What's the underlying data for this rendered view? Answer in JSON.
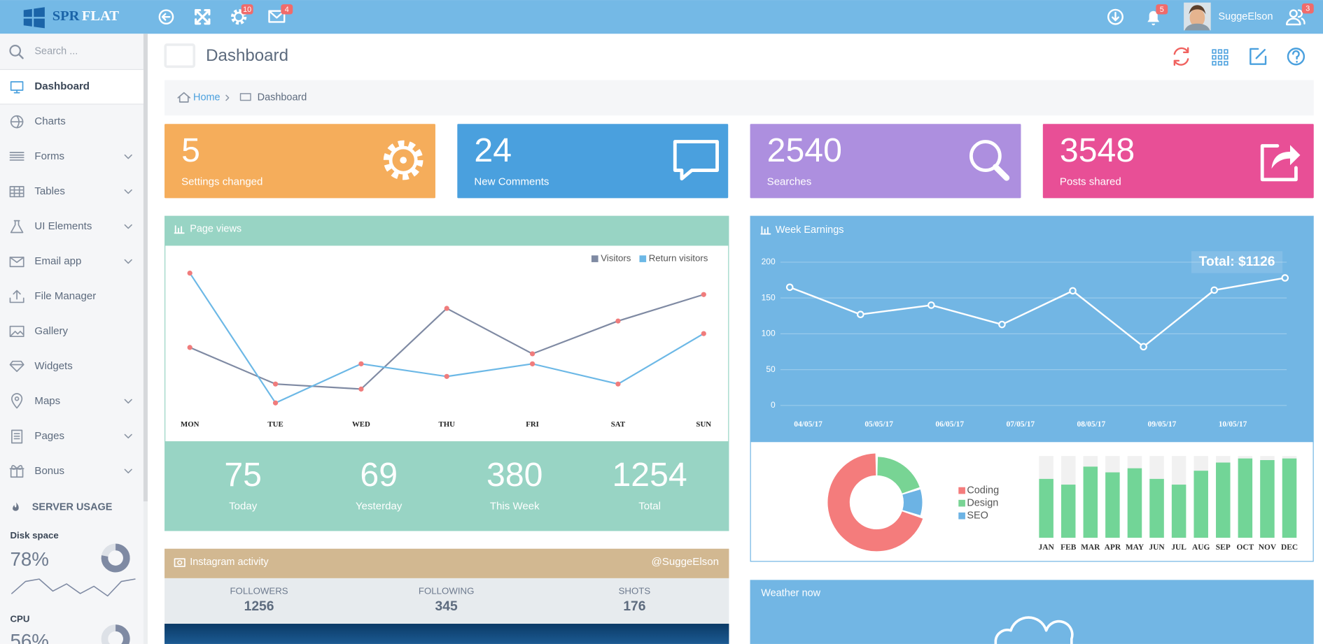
{
  "header": {
    "brand": [
      "SPR",
      "FLAT"
    ],
    "settings_badge": 10,
    "mail_badge": 4,
    "bell_badge": 5,
    "user": "SuggeElson",
    "users_badge": 3
  },
  "sidebar": {
    "search_placeholder": "Search ...",
    "menu": [
      {
        "label": "Dashboard",
        "has_submenu": false
      },
      {
        "label": "Charts",
        "has_submenu": false
      },
      {
        "label": "Forms",
        "has_submenu": true
      },
      {
        "label": "Tables",
        "has_submenu": true
      },
      {
        "label": "UI Elements",
        "has_submenu": true
      },
      {
        "label": "Email app",
        "has_submenu": true
      },
      {
        "label": "File Manager",
        "has_submenu": false
      },
      {
        "label": "Gallery",
        "has_submenu": false
      },
      {
        "label": "Widgets",
        "has_submenu": false
      },
      {
        "label": "Maps",
        "has_submenu": true
      },
      {
        "label": "Pages",
        "has_submenu": true
      },
      {
        "label": "Bonus",
        "has_submenu": true
      }
    ],
    "server_usage": "SERVER USAGE",
    "disk": {
      "label": "Disk space",
      "value": 78,
      "value_label": "78%",
      "trend": {
        "type": "line",
        "values": [
          3,
          8,
          9,
          4,
          7,
          3,
          6,
          2,
          8,
          9
        ],
        "color": "#7f8aa3"
      }
    },
    "cpu": {
      "label": "CPU",
      "value": 56,
      "value_label": "56%"
    }
  },
  "page": {
    "title": "Dashboard",
    "breadcrumb": [
      "Home",
      "Dashboard"
    ]
  },
  "stats": [
    {
      "value": 5,
      "label": "Settings changed",
      "color": "#f5ad5b"
    },
    {
      "value": 24,
      "label": "New Comments",
      "color": "#4aa0de"
    },
    {
      "value": 2540,
      "label": "Searches",
      "color": "#ad8fdf"
    },
    {
      "value": 3548,
      "label": "Posts shared",
      "color": "#e84f96"
    }
  ],
  "page_views": {
    "title": "Page views",
    "chart_data": {
      "type": "line",
      "categories": [
        "MON",
        "TUE",
        "WED",
        "THU",
        "FRI",
        "SAT",
        "SUN"
      ],
      "series": [
        {
          "name": "Visitors",
          "color": "#7f8aa3",
          "values": [
            5.2,
            2.3,
            1.9,
            8.3,
            4.7,
            7.3,
            9.4
          ]
        },
        {
          "name": "Return visitors",
          "color": "#6cb8e6",
          "values": [
            11.1,
            0.8,
            3.9,
            2.9,
            3.9,
            2.3,
            6.3
          ]
        }
      ],
      "marker_color": "#f07c7c",
      "legend": "top-right"
    },
    "summary": [
      {
        "value": 75,
        "label": "Today"
      },
      {
        "value": 69,
        "label": "Yesterday"
      },
      {
        "value": 380,
        "label": "This Week"
      },
      {
        "value": 1254,
        "label": "Total"
      }
    ]
  },
  "week_earnings": {
    "title": "Week Earnings",
    "chart_data": {
      "type": "line",
      "categories": [
        "04/05/17",
        "05/05/17",
        "06/05/17",
        "07/05/17",
        "08/05/17",
        "09/05/17",
        "10/05/17",
        null
      ],
      "values": [
        165,
        127,
        140,
        113,
        160,
        82,
        161,
        178
      ],
      "color": "#ffffff",
      "marker_color": "#ffffff",
      "ylim": [
        0,
        200
      ],
      "yticks": [
        0,
        50,
        100,
        150,
        200
      ],
      "grid": true,
      "annotation": "Total: $1126"
    }
  },
  "skills": {
    "chart_data": {
      "type": "donut",
      "categories": [
        "Coding",
        "Design",
        "SEO"
      ],
      "values": [
        70,
        20,
        10
      ],
      "colors": [
        "#f47c7c",
        "#78d494",
        "#6cb3e4"
      ]
    }
  },
  "monthly": {
    "chart_data": {
      "type": "bar",
      "categories": [
        "JAN",
        "FEB",
        "MAR",
        "APR",
        "MAY",
        "JUN",
        "JUL",
        "AUG",
        "SEP",
        "OCT",
        "NOV",
        "DEC"
      ],
      "values": [
        72,
        65,
        87,
        80,
        85,
        72,
        65,
        82,
        92,
        97,
        95,
        97
      ],
      "ylim": [
        0,
        100
      ],
      "color": "#72d597"
    }
  },
  "instagram": {
    "title": "Instagram activity",
    "handle": "@SuggeElson",
    "stats": [
      {
        "label": "FOLLOWERS",
        "value": 1256
      },
      {
        "label": "FOLLOWING",
        "value": 345
      },
      {
        "label": "SHOTS",
        "value": 176
      }
    ]
  },
  "weather": {
    "title": "Weather now"
  }
}
